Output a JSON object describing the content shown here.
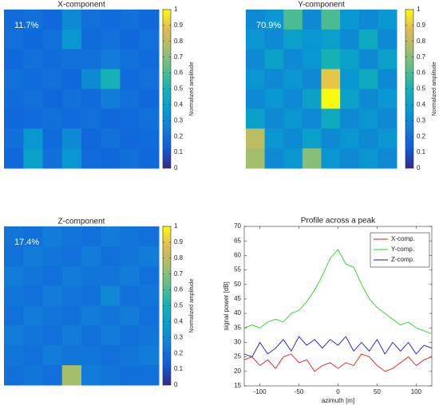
{
  "chart_data": [
    {
      "type": "heatmap",
      "title": "X-component",
      "annotation": "11.7%",
      "zlim": [
        0,
        1
      ],
      "colorbar_ticks": [
        0,
        0.1,
        0.2,
        0.3,
        0.4,
        0.5,
        0.6,
        0.7,
        0.8,
        0.9,
        1
      ],
      "colorbar_label": "Normalized amplitude",
      "z": [
        [
          0.18,
          0.2,
          0.17,
          0.3,
          0.2,
          0.18,
          0.2,
          0.17
        ],
        [
          0.2,
          0.17,
          0.2,
          0.35,
          0.18,
          0.2,
          0.17,
          0.2
        ],
        [
          0.17,
          0.2,
          0.18,
          0.2,
          0.2,
          0.25,
          0.2,
          0.18
        ],
        [
          0.2,
          0.18,
          0.2,
          0.17,
          0.3,
          0.5,
          0.18,
          0.2
        ],
        [
          0.18,
          0.2,
          0.17,
          0.2,
          0.18,
          0.25,
          0.2,
          0.17
        ],
        [
          0.17,
          0.18,
          0.2,
          0.18,
          0.2,
          0.17,
          0.18,
          0.2
        ],
        [
          0.2,
          0.35,
          0.18,
          0.3,
          0.17,
          0.2,
          0.17,
          0.18
        ],
        [
          0.17,
          0.4,
          0.2,
          0.35,
          0.18,
          0.17,
          0.2,
          0.17
        ]
      ]
    },
    {
      "type": "heatmap",
      "title": "Y-component",
      "annotation": "70.9%",
      "zlim": [
        0,
        1
      ],
      "colorbar_ticks": [
        0,
        0.1,
        0.2,
        0.3,
        0.4,
        0.5,
        0.6,
        0.7,
        0.8,
        0.9,
        1
      ],
      "colorbar_label": "Normalized amplitude",
      "z": [
        [
          0.3,
          0.35,
          0.6,
          0.3,
          0.6,
          0.35,
          0.3,
          0.35
        ],
        [
          0.35,
          0.3,
          0.4,
          0.35,
          0.4,
          0.3,
          0.45,
          0.3
        ],
        [
          0.3,
          0.4,
          0.3,
          0.35,
          0.5,
          0.4,
          0.3,
          0.4
        ],
        [
          0.35,
          0.3,
          0.35,
          0.3,
          0.9,
          0.35,
          0.45,
          0.3
        ],
        [
          0.3,
          0.35,
          0.3,
          0.4,
          1,
          0.4,
          0.3,
          0.35
        ],
        [
          0.4,
          0.3,
          0.35,
          0.3,
          0.45,
          0.3,
          0.35,
          0.3
        ],
        [
          0.8,
          0.35,
          0.3,
          0.4,
          0.3,
          0.35,
          0.3,
          0.35
        ],
        [
          0.75,
          0.3,
          0.35,
          0.7,
          0.35,
          0.3,
          0.35,
          0.3
        ]
      ]
    },
    {
      "type": "heatmap",
      "title": "Z-component",
      "annotation": "17.4%",
      "zlim": [
        0,
        1
      ],
      "colorbar_ticks": [
        0,
        0.1,
        0.2,
        0.3,
        0.4,
        0.5,
        0.6,
        0.7,
        0.8,
        0.9,
        1
      ],
      "colorbar_label": "Normalized amplitude",
      "z": [
        [
          0.22,
          0.2,
          0.25,
          0.22,
          0.2,
          0.25,
          0.22,
          0.2
        ],
        [
          0.2,
          0.25,
          0.22,
          0.2,
          0.25,
          0.2,
          0.22,
          0.25
        ],
        [
          0.25,
          0.22,
          0.2,
          0.25,
          0.22,
          0.22,
          0.25,
          0.2
        ],
        [
          0.22,
          0.2,
          0.25,
          0.22,
          0.2,
          0.3,
          0.2,
          0.22
        ],
        [
          0.2,
          0.25,
          0.22,
          0.2,
          0.25,
          0.22,
          0.25,
          0.2
        ],
        [
          0.25,
          0.22,
          0.2,
          0.25,
          0.2,
          0.25,
          0.2,
          0.22
        ],
        [
          0.22,
          0.2,
          0.25,
          0.22,
          0.22,
          0.2,
          0.22,
          0.25
        ],
        [
          0.2,
          0.22,
          0.2,
          0.75,
          0.25,
          0.22,
          0.2,
          0.2
        ]
      ]
    },
    {
      "type": "line",
      "title": "Profile across a peak",
      "xlabel": "azimuth [m]",
      "ylabel": "signal power [dB]",
      "x": [
        -120,
        -110,
        -100,
        -90,
        -80,
        -70,
        -60,
        -50,
        -40,
        -30,
        -20,
        -10,
        0,
        10,
        20,
        30,
        40,
        50,
        60,
        70,
        80,
        90,
        100,
        110,
        120
      ],
      "xlim": [
        -120,
        120
      ],
      "xticks": [
        -100,
        -50,
        0,
        50,
        100
      ],
      "ylim": [
        15,
        70
      ],
      "yticks": [
        15,
        20,
        25,
        30,
        35,
        40,
        45,
        50,
        55,
        60,
        65,
        70
      ],
      "legend": "upper right",
      "series": [
        {
          "name": "X-comp.",
          "color": "#e0191b",
          "values": [
            24,
            25,
            22,
            24,
            21,
            25,
            26,
            23,
            24,
            20,
            22,
            23,
            21,
            23,
            22,
            26,
            25,
            22,
            20,
            21,
            23,
            25,
            22,
            24,
            25
          ]
        },
        {
          "name": "Y-comp.",
          "color": "#22d11f",
          "values": [
            35,
            36,
            35,
            37,
            38,
            37,
            40,
            41,
            44,
            48,
            53,
            59,
            62,
            57,
            56,
            50,
            45,
            42,
            40,
            38,
            36,
            37,
            35,
            34,
            33
          ]
        },
        {
          "name": "Z-comp.",
          "color": "#1515d0",
          "values": [
            26,
            25,
            30,
            26,
            28,
            31,
            27,
            32,
            29,
            31,
            28,
            31,
            29,
            32,
            27,
            30,
            27,
            31,
            26,
            30,
            27,
            30,
            26,
            29,
            28
          ]
        }
      ]
    }
  ]
}
